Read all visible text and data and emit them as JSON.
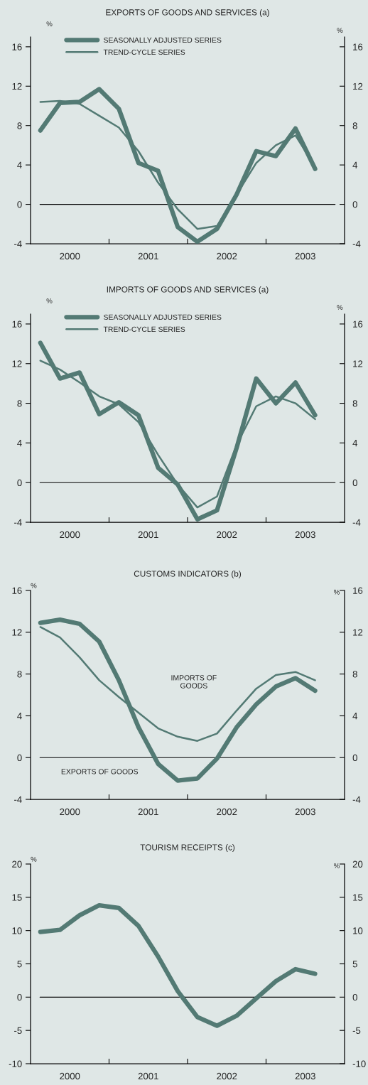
{
  "chart_data": [
    {
      "type": "line",
      "title": "EXPORTS OF GOODS AND SERVICES (a)",
      "ylabel": "%",
      "y2label": "%",
      "x": [
        2000.125,
        2000.375,
        2000.625,
        2000.875,
        2001.125,
        2001.375,
        2001.625,
        2001.875,
        2002.125,
        2002.375,
        2002.625,
        2002.875,
        2003.125,
        2003.375,
        2003.625
      ],
      "series": [
        {
          "name": "SEASONALLY ADJUSTED SERIES",
          "color": "#537a74",
          "values": [
            7.5,
            10.3,
            10.4,
            11.7,
            9.7,
            4.2,
            3.4,
            -2.3,
            -3.8,
            -2.5,
            1.0,
            5.4,
            4.9,
            7.7,
            3.6
          ]
        },
        {
          "name": "TREND-CYCLE SERIES",
          "color": "#537a74",
          "values": [
            10.4,
            10.5,
            10.2,
            9.0,
            7.8,
            5.4,
            2.2,
            -0.5,
            -2.5,
            -2.2,
            1.0,
            4.2,
            6.0,
            7.0,
            3.8
          ]
        }
      ],
      "xlim": [
        2000,
        2004
      ],
      "xticks": [
        {
          "value": 2000.5,
          "label": "2000"
        },
        {
          "value": 2001,
          "label": null
        },
        {
          "value": 2001.5,
          "label": "2001"
        },
        {
          "value": 2002,
          "label": null
        },
        {
          "value": 2002.5,
          "label": "2002"
        },
        {
          "value": 2003,
          "label": null
        },
        {
          "value": 2003.5,
          "label": "2003"
        }
      ],
      "ylim": [
        -4,
        17
      ],
      "yticks": [
        -4,
        0,
        4,
        8,
        12,
        16
      ],
      "y2lim": [
        -4,
        17
      ],
      "y2ticks": [
        -4,
        0,
        4,
        8,
        12,
        16
      ],
      "ref_lines": [
        {
          "axis": "y",
          "value": 0,
          "color": "#000000"
        }
      ],
      "legend": "top left",
      "grid": false,
      "line_style": "solid",
      "marker": "none"
    },
    {
      "type": "line",
      "title": "IMPORTS OF GOODS AND SERVICES (a)",
      "ylabel": "%",
      "y2label": "%",
      "x": [
        2000.125,
        2000.375,
        2000.625,
        2000.875,
        2001.125,
        2001.375,
        2001.625,
        2001.875,
        2002.125,
        2002.375,
        2002.625,
        2002.875,
        2003.125,
        2003.375,
        2003.625
      ],
      "series": [
        {
          "name": "SEASONALLY ADJUSTED SERIES",
          "color": "#537a74",
          "values": [
            14.1,
            10.5,
            11.1,
            6.9,
            8.1,
            6.8,
            1.5,
            -0.2,
            -3.7,
            -2.8,
            3.5,
            10.5,
            8.0,
            10.1,
            6.8
          ]
        },
        {
          "name": "TREND-CYCLE SERIES",
          "color": "#537a74",
          "values": [
            12.3,
            11.4,
            10.1,
            8.7,
            7.9,
            6.1,
            2.8,
            -0.2,
            -2.5,
            -1.4,
            3.8,
            7.7,
            8.7,
            8.0,
            6.4
          ]
        }
      ],
      "xlim": [
        2000,
        2004
      ],
      "xticks": [
        {
          "value": 2000.5,
          "label": "2000"
        },
        {
          "value": 2001,
          "label": null
        },
        {
          "value": 2001.5,
          "label": "2001"
        },
        {
          "value": 2002,
          "label": null
        },
        {
          "value": 2002.5,
          "label": "2002"
        },
        {
          "value": 2003,
          "label": null
        },
        {
          "value": 2003.5,
          "label": "2003"
        }
      ],
      "ylim": [
        -4,
        17
      ],
      "yticks": [
        -4,
        0,
        4,
        8,
        12,
        16
      ],
      "y2lim": [
        -4,
        17
      ],
      "y2ticks": [
        -4,
        0,
        4,
        8,
        12,
        16
      ],
      "ref_lines": [
        {
          "axis": "y",
          "value": 0,
          "color": "#000000"
        }
      ],
      "legend": "top left",
      "grid": false,
      "line_style": "solid",
      "marker": "none"
    },
    {
      "type": "line",
      "title": "CUSTOMS INDICATORS (b)",
      "ylabel": "%",
      "y2label": "%",
      "x": [
        2000.125,
        2000.375,
        2000.625,
        2000.875,
        2001.125,
        2001.375,
        2001.625,
        2001.875,
        2002.125,
        2002.375,
        2002.625,
        2002.875,
        2003.125,
        2003.375,
        2003.625
      ],
      "series": [
        {
          "color": "#537a74",
          "values": [
            12.9,
            13.2,
            12.8,
            11.1,
            7.4,
            2.9,
            -0.6,
            -2.2,
            -2.0,
            -0.1,
            2.9,
            5.1,
            6.8,
            7.6,
            6.4
          ]
        },
        {
          "color": "#537a74",
          "values": [
            12.5,
            11.5,
            9.6,
            7.4,
            5.8,
            4.3,
            2.8,
            2.0,
            1.6,
            2.3,
            4.5,
            6.6,
            7.9,
            8.2,
            7.4
          ]
        }
      ],
      "annotations": [
        "IMPORTS OF\nGOODS",
        "EXPORTS OF GOODS"
      ],
      "xlim": [
        2000,
        2004
      ],
      "xticks": [
        {
          "value": 2000.5,
          "label": "2000"
        },
        {
          "value": 2001,
          "label": null
        },
        {
          "value": 2001.5,
          "label": "2001"
        },
        {
          "value": 2002,
          "label": null
        },
        {
          "value": 2002.5,
          "label": "2002"
        },
        {
          "value": 2003,
          "label": null
        },
        {
          "value": 2003.5,
          "label": "2003"
        }
      ],
      "ylim": [
        -4,
        16
      ],
      "yticks": [
        -4,
        0,
        4,
        8,
        12,
        16
      ],
      "y2lim": [
        -4,
        16
      ],
      "y2ticks": [
        -4,
        0,
        4,
        8,
        12,
        16
      ],
      "ref_lines": [
        {
          "axis": "y",
          "value": 0,
          "color": "#000000"
        }
      ],
      "grid": false,
      "line_style": "solid",
      "marker": "none"
    },
    {
      "type": "line",
      "title": "TOURISM RECEIPTS (c)",
      "ylabel": "%",
      "y2label": "%",
      "x": [
        2000.125,
        2000.375,
        2000.625,
        2000.875,
        2001.125,
        2001.375,
        2001.625,
        2001.875,
        2002.125,
        2002.375,
        2002.625,
        2002.875,
        2003.125,
        2003.375,
        2003.625
      ],
      "series": [
        {
          "color": "#537a74",
          "values": [
            9.8,
            10.1,
            12.3,
            13.8,
            13.4,
            10.7,
            6.1,
            0.9,
            -3.0,
            -4.3,
            -2.8,
            -0.2,
            2.4,
            4.2,
            3.5
          ]
        }
      ],
      "xlim": [
        2000,
        2004
      ],
      "xticks": [
        {
          "value": 2000.5,
          "label": "2000"
        },
        {
          "value": 2001,
          "label": null
        },
        {
          "value": 2001.5,
          "label": "2001"
        },
        {
          "value": 2002,
          "label": null
        },
        {
          "value": 2002.5,
          "label": "2002"
        },
        {
          "value": 2003,
          "label": null
        },
        {
          "value": 2003.5,
          "label": "2003"
        }
      ],
      "ylim": [
        -10,
        20
      ],
      "yticks": [
        -10,
        -5,
        0,
        5,
        10,
        15,
        20
      ],
      "y2lim": [
        -10,
        20
      ],
      "y2ticks": [
        -10,
        -5,
        0,
        5,
        10,
        15,
        20
      ],
      "ref_lines": [
        {
          "axis": "y",
          "value": 0,
          "color": "#000000"
        }
      ],
      "grid": false,
      "line_style": "solid",
      "marker": "none"
    }
  ]
}
